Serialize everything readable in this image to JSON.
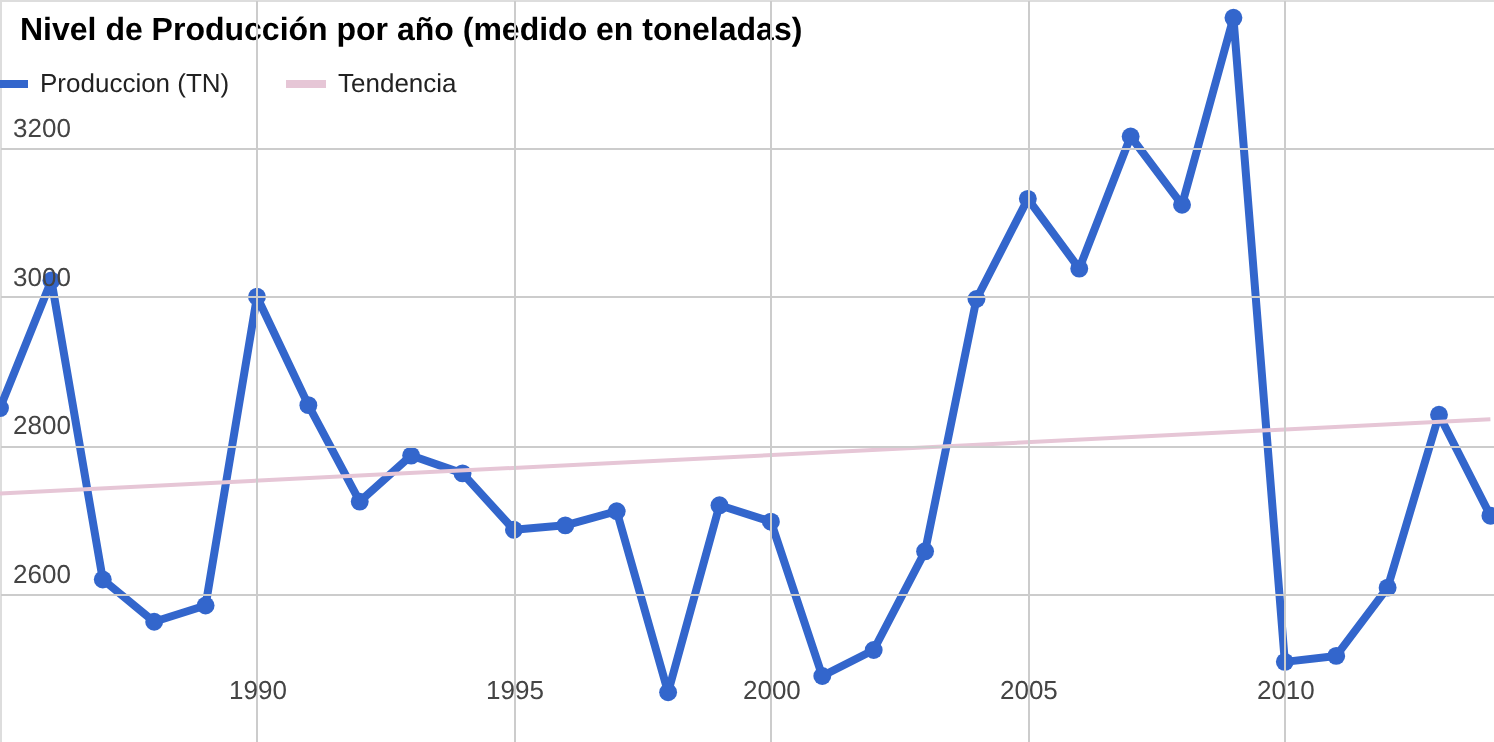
{
  "chart_data": {
    "type": "line",
    "title": "Nivel de Producción por año (medido en toneladas)",
    "x": [
      1985,
      1986,
      1987,
      1988,
      1989,
      1990,
      1991,
      1992,
      1993,
      1994,
      1995,
      1996,
      1997,
      1998,
      1999,
      2000,
      2001,
      2002,
      2003,
      2004,
      2005,
      2006,
      2007,
      2008,
      2009,
      2010,
      2011,
      2012,
      2013,
      2014
    ],
    "series": [
      {
        "name": "Produccion (TN)",
        "color": "#3366cc",
        "marker": "circle",
        "values": [
          2850,
          3022,
          2619,
          2562,
          2584,
          3000,
          2854,
          2724,
          2786,
          2762,
          2686,
          2692,
          2711,
          2467,
          2719,
          2697,
          2489,
          2524,
          2657,
          2997,
          3132,
          3038,
          3216,
          3124,
          3376,
          2508,
          2516,
          2608,
          2841,
          2705
        ]
      },
      {
        "name": "Tendencia",
        "color": "#e6c6d6",
        "marker": "none",
        "x": [
          1985,
          2014
        ],
        "values": [
          2735,
          2835
        ]
      }
    ],
    "xlim": [
      1985,
      2014.07
    ],
    "xticks": [
      1990,
      1995,
      2000,
      2005,
      2010
    ],
    "ylim": [
      2400,
      3400
    ],
    "yticks": [
      2600,
      2800,
      3000,
      3200
    ],
    "grid": true,
    "legend": "top left"
  }
}
